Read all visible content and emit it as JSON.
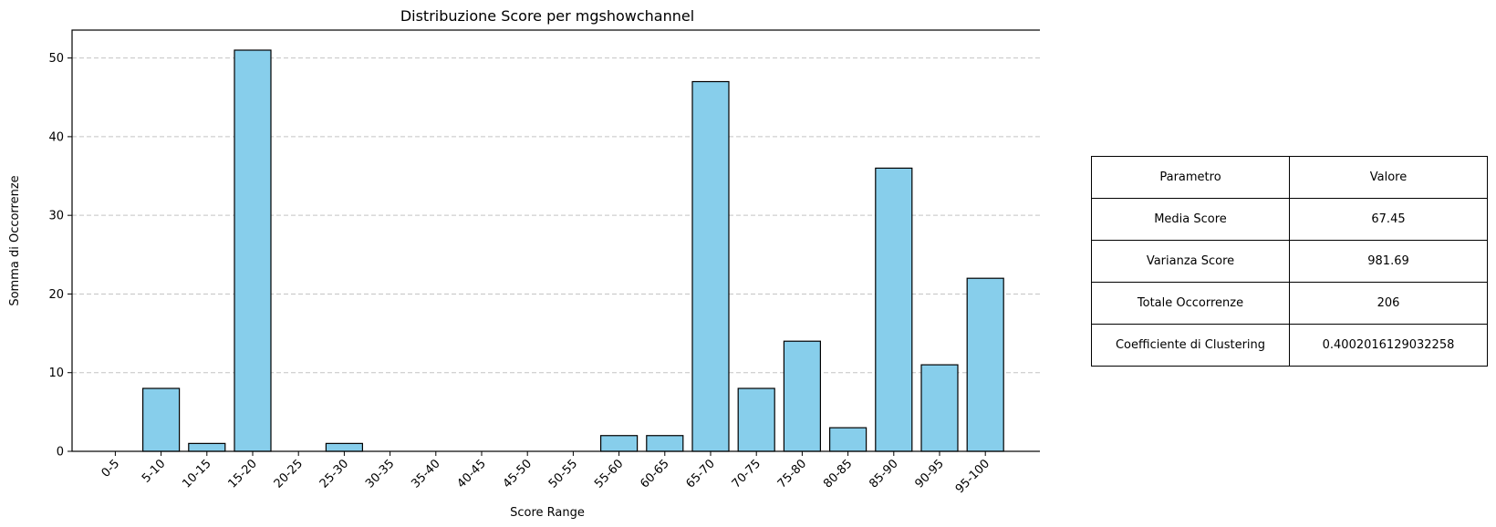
{
  "chart_data": {
    "type": "bar",
    "title": "Distribuzione Score per mgshowchannel",
    "xlabel": "Score Range",
    "ylabel": "Somma di Occorrenze",
    "categories": [
      "0-5",
      "5-10",
      "10-15",
      "15-20",
      "20-25",
      "25-30",
      "30-35",
      "35-40",
      "40-45",
      "45-50",
      "50-55",
      "55-60",
      "60-65",
      "65-70",
      "70-75",
      "75-80",
      "80-85",
      "85-90",
      "90-95",
      "95-100"
    ],
    "values": [
      0,
      8,
      1,
      51,
      0,
      1,
      0,
      0,
      0,
      0,
      0,
      2,
      2,
      47,
      8,
      14,
      3,
      36,
      11,
      22
    ],
    "ylim": [
      0,
      53.55
    ],
    "yticks": [
      0,
      10,
      20,
      30,
      40,
      50
    ],
    "grid": "y dashed",
    "bar_color": "#87ceeb",
    "edge_color": "#000000"
  },
  "stats_table": {
    "header": [
      "Parametro",
      "Valore"
    ],
    "rows": [
      [
        "Media Score",
        "67.45"
      ],
      [
        "Varianza Score",
        "981.69"
      ],
      [
        "Totale Occorrenze",
        "206"
      ],
      [
        "Coefficiente di Clustering",
        "0.4002016129032258"
      ]
    ]
  }
}
